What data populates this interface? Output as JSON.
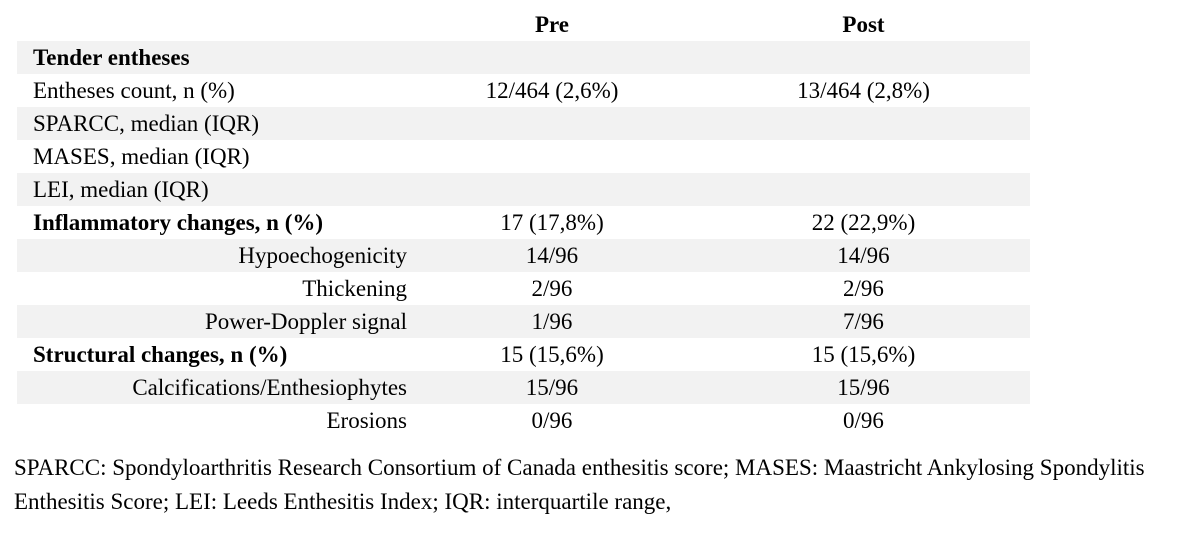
{
  "table": {
    "columns": [
      "",
      "Pre",
      "Post"
    ],
    "rows": [
      {
        "label": "Tender entheses",
        "pre": "",
        "post": "",
        "bold": true,
        "indent": false,
        "shaded": true
      },
      {
        "label": "Entheses count, n (%)",
        "pre": "12/464 (2,6%)",
        "post": "13/464 (2,8%)",
        "bold": false,
        "indent": false,
        "shaded": false
      },
      {
        "label": "SPARCC, median (IQR)",
        "pre": "",
        "post": "",
        "bold": false,
        "indent": false,
        "shaded": true
      },
      {
        "label": "MASES, median (IQR)",
        "pre": "",
        "post": "",
        "bold": false,
        "indent": false,
        "shaded": false
      },
      {
        "label": "LEI, median (IQR)",
        "pre": "",
        "post": "",
        "bold": false,
        "indent": false,
        "shaded": true
      },
      {
        "label": "Inflammatory changes, n (%)",
        "pre": "17 (17,8%)",
        "post": "22 (22,9%)",
        "bold": true,
        "indent": false,
        "shaded": false
      },
      {
        "label": "Hypoechogenicity",
        "pre": "14/96",
        "post": "14/96",
        "bold": false,
        "indent": true,
        "shaded": true
      },
      {
        "label": "Thickening",
        "pre": "2/96",
        "post": "2/96",
        "bold": false,
        "indent": true,
        "shaded": false
      },
      {
        "label": "Power-Doppler signal",
        "pre": "1/96",
        "post": "7/96",
        "bold": false,
        "indent": true,
        "shaded": true
      },
      {
        "label": "Structural changes, n (%)",
        "pre": "15 (15,6%)",
        "post": "15 (15,6%)",
        "bold": true,
        "indent": false,
        "shaded": false
      },
      {
        "label": "Calcifications/Enthesiophytes",
        "pre": "15/96",
        "post": "15/96",
        "bold": false,
        "indent": true,
        "shaded": true
      },
      {
        "label": "Erosions",
        "pre": "0/96",
        "post": "0/96",
        "bold": false,
        "indent": true,
        "shaded": false
      }
    ]
  },
  "footnote": "SPARCC: Spondyloarthritis Research Consortium of Canada enthesitis score; MASES: Maastricht Ankylosing Spondylitis Enthesitis Score; LEI: Leeds Enthesitis Index; IQR: interquartile range,",
  "colors": {
    "row_shade": "#f2f2f2",
    "text": "#000000",
    "background": "#ffffff"
  }
}
